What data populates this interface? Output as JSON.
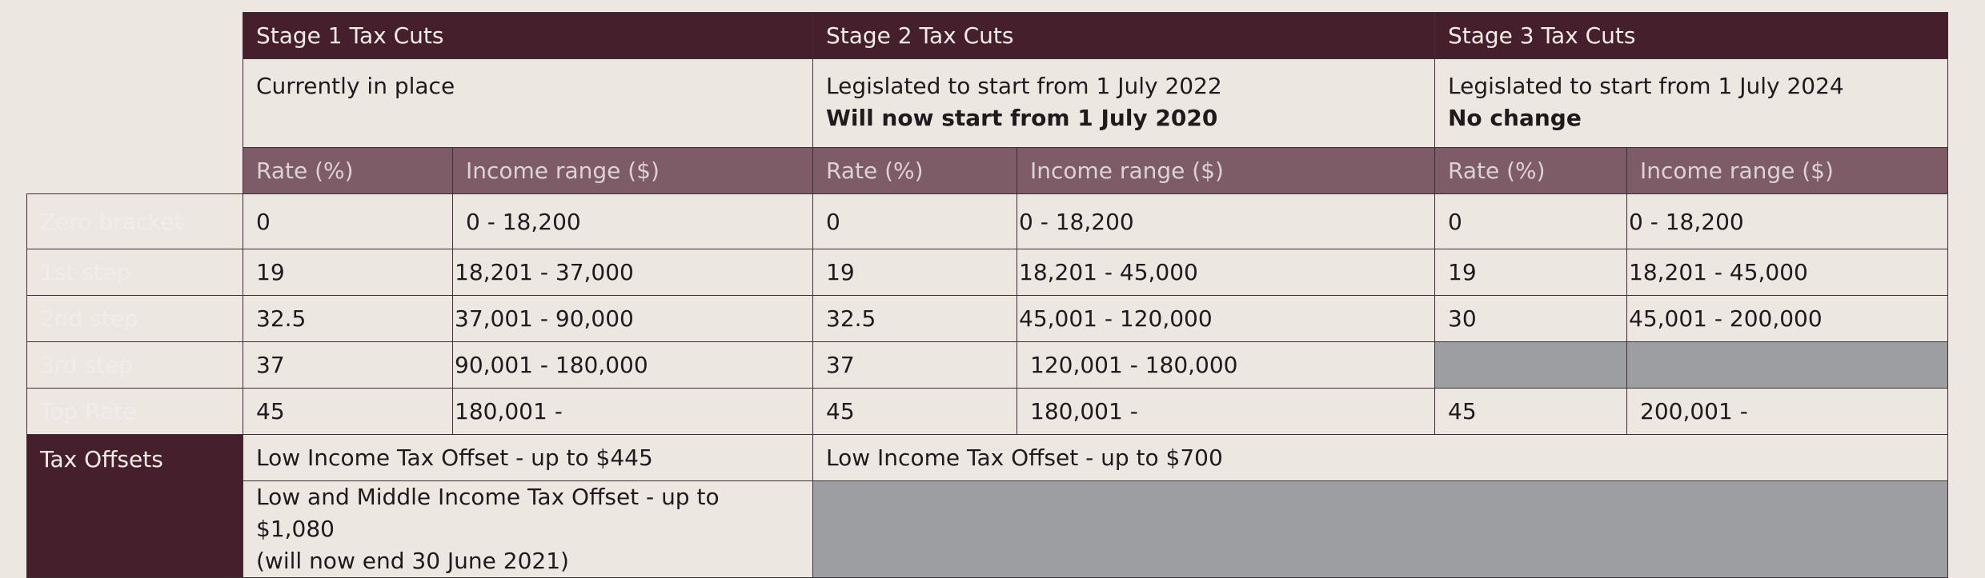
{
  "stages": [
    {
      "title": "Stage 1 Tax Cuts",
      "line1": "Currently in place",
      "line2": ""
    },
    {
      "title": "Stage 2 Tax Cuts",
      "line1": "Legislated to start from 1 July 2022",
      "line2": "Will now start from 1 July 2020"
    },
    {
      "title": "Stage 3 Tax Cuts",
      "line1": "Legislated to start from 1 July 2024",
      "line2": "No change"
    }
  ],
  "columns": {
    "rate": "Rate (%)",
    "income": "Income range ($)"
  },
  "rows": [
    {
      "label": "Zero bracket",
      "s1_rate": "0",
      "s1_income": "0 - 18,200",
      "s2_rate": "0",
      "s2_income": "0 - 18,200",
      "s3_rate": "0",
      "s3_income": "0 - 18,200"
    },
    {
      "label": "1st step",
      "s1_rate": "19",
      "s1_income": "18,201 - 37,000",
      "s2_rate": "19",
      "s2_income": "18,201 - 45,000",
      "s3_rate": "19",
      "s3_income": "18,201 - 45,000"
    },
    {
      "label": "2nd step",
      "s1_rate": "32.5",
      "s1_income": "37,001 - 90,000",
      "s2_rate": "32.5",
      "s2_income": "45,001 - 120,000",
      "s3_rate": "30",
      "s3_income": "45,001 - 200,000"
    },
    {
      "label": "3rd step",
      "s1_rate": "37",
      "s1_income": "90,001 - 180,000",
      "s2_rate": "37",
      "s2_income": "120,001  - 180,000",
      "s3_rate": "",
      "s3_income": ""
    },
    {
      "label": "Top Rate",
      "s1_rate": "45",
      "s1_income": "180,001 -",
      "s2_rate": "45",
      "s2_income": "180,001 -",
      "s3_rate": "45",
      "s3_income": "200,001 -"
    }
  ],
  "offsets": {
    "label": "Tax Offsets",
    "lito_s1": "Low Income Tax Offset - up to $445",
    "lito_s23": "Low Income Tax Offset - up to $700",
    "lmito_line1": "Low and Middle Income Tax Offset - up to $1,080",
    "lmito_line2": "(will now end 30 June 2021)"
  },
  "colors": {
    "dark_maroon": "#45202c",
    "mid_maroon": "#7d5c68",
    "cream": "#ece8e1",
    "gray": "#9d9ea2"
  }
}
